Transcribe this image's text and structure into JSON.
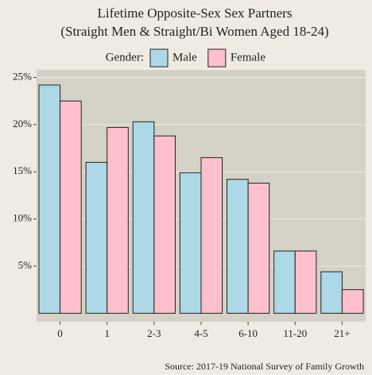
{
  "chart_data": {
    "type": "bar",
    "title": "Lifetime Opposite-Sex Sex Partners",
    "subtitle": "(Straight Men & Straight/Bi Women Aged 18-24)",
    "legend_title": "Gender:",
    "legend_position": "top",
    "source": "Source: 2017-19 National Survey of Family Growth",
    "categories": [
      "0",
      "1",
      "2-3",
      "4-5",
      "6-10",
      "11-20",
      "21+"
    ],
    "series": [
      {
        "name": "Male",
        "color": "#add8e6",
        "values": [
          24.2,
          16.0,
          20.3,
          14.9,
          14.2,
          6.6,
          4.4
        ]
      },
      {
        "name": "Female",
        "color": "#ffc0cb",
        "values": [
          22.5,
          19.7,
          18.8,
          16.5,
          13.8,
          6.6,
          2.5
        ]
      }
    ],
    "ylim": [
      -0.9,
      25.8
    ],
    "yticks": [
      {
        "value": 5,
        "label": "5%"
      },
      {
        "value": 10,
        "label": "10%"
      },
      {
        "value": 15,
        "label": "15%"
      },
      {
        "value": 20,
        "label": "20%"
      },
      {
        "value": 25,
        "label": "25%"
      }
    ],
    "grid": true
  }
}
